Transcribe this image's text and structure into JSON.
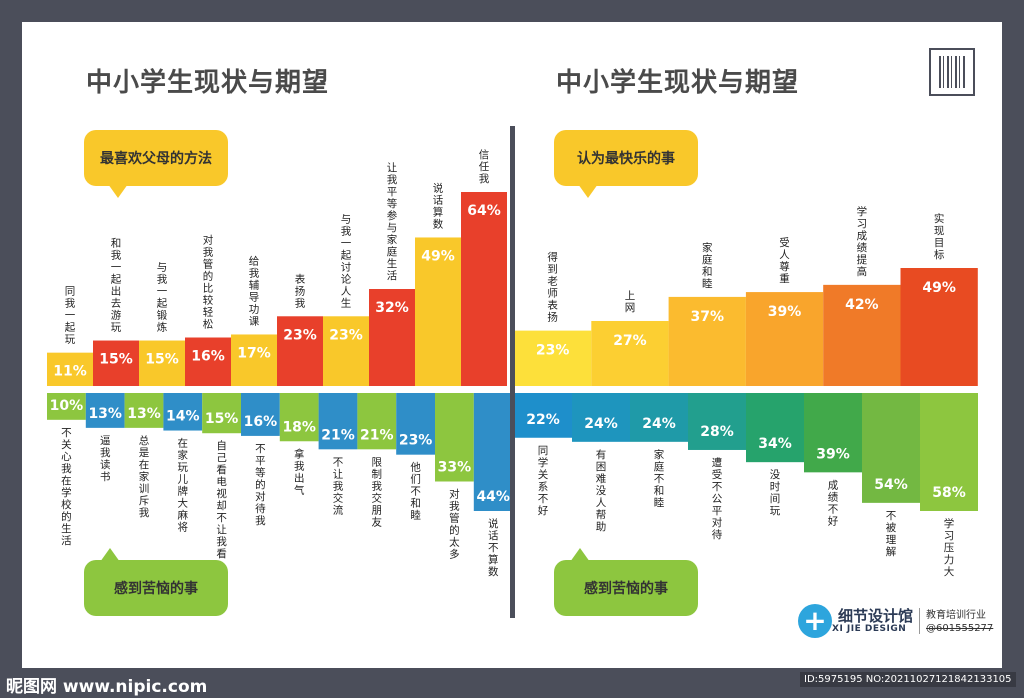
{
  "titles": {
    "left": "中小学生现状与期望",
    "right": "中小学生现状与期望"
  },
  "bubbles": {
    "left_top": "最喜欢父母的方法",
    "left_bottom": "感到苦恼的事",
    "right_top": "认为最快乐的事",
    "right_bottom": "感到苦恼的事"
  },
  "logo": {
    "name": "细节设计馆",
    "name_en": "XI JIE DESIGN",
    "tagline": "教育培训行业",
    "number": "@601555277"
  },
  "watermark": {
    "left": "昵图网 www.nipic.com",
    "right": "ID:5975195 NO:20211027121842133105"
  },
  "colors": {
    "yellow": "#f9c82a",
    "red": "#e8402b",
    "green": "#8dc63f",
    "blue": "#2f8ec8",
    "divider": "#4b4e5a"
  },
  "chart_data": [
    {
      "type": "bar",
      "title": "最喜欢父母的方法",
      "categories": [
        "同我一起玩",
        "和我一起出去游玩",
        "与我一起锻炼",
        "对我管的比较轻松",
        "给我辅导功课",
        "表扬我",
        "与我一起讨论人生",
        "让我平等参与家庭生活",
        "说话算数",
        "信任我"
      ],
      "values": [
        11,
        15,
        15,
        16,
        17,
        23,
        23,
        32,
        49,
        64
      ],
      "labels": [
        "11%",
        "15%",
        "15%",
        "16%",
        "17%",
        "23%",
        "23%",
        "32%",
        "49%",
        "64%"
      ],
      "colors": [
        "#f9c82a",
        "#e8402b",
        "#f9c82a",
        "#e8402b",
        "#f9c82a",
        "#e8402b",
        "#f9c82a",
        "#e8402b",
        "#f9c82a",
        "#e8402b"
      ]
    },
    {
      "type": "bar",
      "title": "感到苦恼的事",
      "categories": [
        "不关心我在学校的生活",
        "逼我读书",
        "总是在家训斥我",
        "在家玩儿牌大麻将",
        "自己看电视却不让我看",
        "不平等的对待我",
        "拿我出气",
        "不让我交流",
        "限制我交朋友",
        "他们不和睦",
        "对我管的太多",
        "说话不算数"
      ],
      "values": [
        10,
        13,
        13,
        14,
        15,
        16,
        18,
        21,
        21,
        23,
        33,
        44
      ],
      "labels": [
        "10%",
        "13%",
        "13%",
        "14%",
        "15%",
        "16%",
        "18%",
        "21%",
        "21%",
        "23%",
        "33%",
        "44%"
      ],
      "colors": [
        "#8dc63f",
        "#2f8ec8",
        "#8dc63f",
        "#2f8ec8",
        "#8dc63f",
        "#2f8ec8",
        "#8dc63f",
        "#2f8ec8",
        "#8dc63f",
        "#2f8ec8",
        "#8dc63f",
        "#2f8ec8"
      ]
    },
    {
      "type": "bar",
      "title": "认为最快乐的事",
      "categories": [
        "得到老师表扬",
        "上网",
        "家庭和睦",
        "受人尊重",
        "学习成绩提高",
        "实现目标"
      ],
      "values": [
        23,
        27,
        37,
        39,
        42,
        49
      ],
      "labels": [
        "23%",
        "27%",
        "37%",
        "39%",
        "42%",
        "49%"
      ],
      "colors": [
        "#fde03a",
        "#fccf32",
        "#fbbb2f",
        "#f9a52c",
        "#f07a28",
        "#e84b22"
      ]
    },
    {
      "type": "bar",
      "title": "感到苦恼的事",
      "categories": [
        "同学关系不好",
        "有困难没人帮助",
        "家庭不和睦",
        "遭受不公平对待",
        "没时间玩",
        "成绩不好",
        "不被理解",
        "学习压力大"
      ],
      "values": [
        22,
        24,
        24,
        28,
        34,
        39,
        54,
        58
      ],
      "labels": [
        "22%",
        "24%",
        "24%",
        "28%",
        "34%",
        "39%",
        "54%",
        "58%"
      ],
      "colors": [
        "#1e8fcb",
        "#1e95be",
        "#1f9aa8",
        "#229f8e",
        "#26a36c",
        "#41a94a",
        "#73b842",
        "#8dc63f"
      ]
    }
  ]
}
